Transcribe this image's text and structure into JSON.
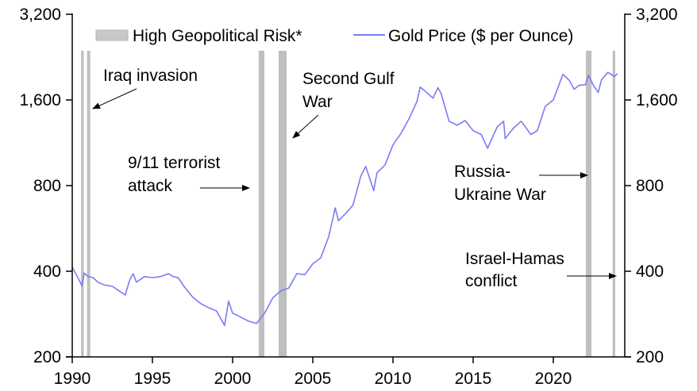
{
  "chart_data": {
    "type": "line",
    "title": "",
    "xlabel": "",
    "ylabel": "",
    "y_scale": "log2",
    "xlim": [
      1990,
      2024.6
    ],
    "ylim": [
      200,
      3200
    ],
    "x_ticks": [
      "1990",
      "1995",
      "2000",
      "2005",
      "2010",
      "2015",
      "2020"
    ],
    "x_tick_values": [
      1990,
      1995,
      2000,
      2005,
      2010,
      2015,
      2020
    ],
    "y_ticks_left": [
      "3,200",
      "1,600",
      "800",
      "400",
      "200"
    ],
    "y_ticks_right": [
      "3,200",
      "1,600",
      "800",
      "400",
      "200"
    ],
    "y_tick_values": [
      3200,
      1600,
      800,
      400,
      200
    ],
    "grid": false,
    "legend": {
      "placement": "top",
      "entries": [
        {
          "label": "High Geopolitical Risk*",
          "kind": "band",
          "color": "#bfbfbf"
        },
        {
          "label": "Gold Price ($ per Ounce)",
          "kind": "line",
          "color": "#7b7bf5"
        }
      ]
    },
    "shaded_periods": [
      {
        "start": 1990.55,
        "end": 1990.72
      },
      {
        "start": 1990.92,
        "end": 1991.12
      },
      {
        "start": 2001.63,
        "end": 2001.98
      },
      {
        "start": 2002.87,
        "end": 2003.37
      },
      {
        "start": 2022.03,
        "end": 2022.38
      },
      {
        "start": 2023.7,
        "end": 2023.86
      }
    ],
    "series": [
      {
        "name": "Gold Price ($ per Ounce)",
        "color": "#7b7bf5",
        "x": [
          1990.0,
          1990.3,
          1990.6,
          1990.75,
          1991.0,
          1991.3,
          1991.6,
          1992.0,
          1992.5,
          1993.0,
          1993.3,
          1993.6,
          1993.8,
          1994.0,
          1994.5,
          1995.0,
          1995.5,
          1996.0,
          1996.3,
          1996.6,
          1997.0,
          1997.5,
          1998.0,
          1998.5,
          1999.0,
          1999.5,
          1999.75,
          2000.0,
          2000.5,
          2001.0,
          2001.5,
          2002.0,
          2002.5,
          2003.0,
          2003.5,
          2004.0,
          2004.5,
          2005.0,
          2005.5,
          2006.0,
          2006.4,
          2006.6,
          2007.0,
          2007.5,
          2008.0,
          2008.3,
          2008.8,
          2009.0,
          2009.5,
          2010.0,
          2010.5,
          2011.0,
          2011.5,
          2011.7,
          2012.0,
          2012.5,
          2012.8,
          2013.0,
          2013.5,
          2014.0,
          2014.5,
          2015.0,
          2015.5,
          2015.9,
          2016.5,
          2016.9,
          2017.0,
          2017.5,
          2018.0,
          2018.6,
          2019.0,
          2019.5,
          2020.0,
          2020.6,
          2021.0,
          2021.3,
          2021.6,
          2022.0,
          2022.2,
          2022.5,
          2022.8,
          2023.0,
          2023.4,
          2023.8,
          2024.0
        ],
        "values": [
          413,
          385,
          356,
          394,
          383,
          380,
          366,
          358,
          354,
          339,
          330,
          375,
          392,
          366,
          383,
          380,
          383,
          392,
          383,
          380,
          352,
          325,
          308,
          298,
          290,
          258,
          314,
          285,
          276,
          267,
          262,
          285,
          322,
          341,
          349,
          392,
          389,
          425,
          446,
          531,
          668,
          602,
          634,
          682,
          865,
          934,
          768,
          887,
          944,
          1112,
          1220,
          1373,
          1582,
          1777,
          1720,
          1623,
          1766,
          1688,
          1347,
          1304,
          1354,
          1248,
          1210,
          1083,
          1286,
          1347,
          1170,
          1271,
          1347,
          1210,
          1248,
          1519,
          1600,
          1968,
          1874,
          1745,
          1800,
          1810,
          1955,
          1800,
          1700,
          1880,
          2000,
          1935,
          1980
        ]
      }
    ],
    "annotations": [
      {
        "id": "iraq",
        "lines": [
          "Iraq invasion"
        ],
        "arrow_to": [
          1991.1,
          1600
        ]
      },
      {
        "id": "second-gulf",
        "lines": [
          "Second Gulf",
          "War"
        ],
        "arrow_to": [
          2003.4,
          1150
        ]
      },
      {
        "id": "nine-eleven",
        "lines": [
          "9/11 terrorist",
          "attack"
        ],
        "arrow_to": [
          2001.2,
          800
        ]
      },
      {
        "id": "russia",
        "lines": [
          "Russia-",
          "Ukraine War"
        ],
        "arrow_to": [
          2022.3,
          920
        ]
      },
      {
        "id": "israel",
        "lines": [
          "Israel-Hamas",
          "conflict"
        ],
        "arrow_to": [
          2024.2,
          400
        ]
      }
    ]
  }
}
